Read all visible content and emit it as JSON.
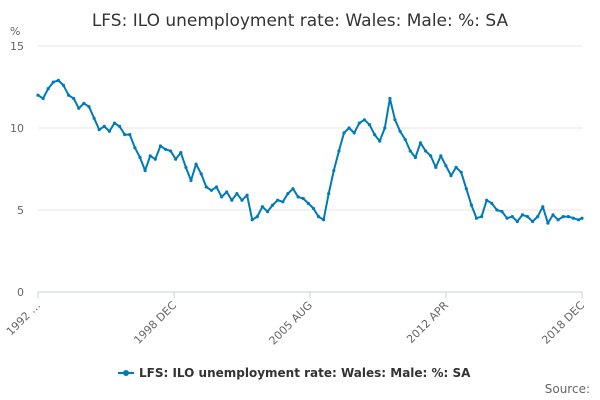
{
  "chart_data": {
    "type": "line",
    "title": "LFS: ILO unemployment rate: Wales: Male: %: SA",
    "ylabel": "%",
    "xlabel": "",
    "ylim": [
      0,
      15
    ],
    "yticks": [
      0,
      5,
      10,
      15
    ],
    "xlim": [
      "1992 APR",
      "2018 DEC"
    ],
    "xticks": [
      "1992 …",
      "1998 DEC",
      "2005 AUG",
      "2012 APR",
      "2018 DEC"
    ],
    "grid": "horizontal",
    "legend_position": "bottom",
    "series_color": "#007ab8",
    "series": [
      {
        "name": "LFS: ILO unemployment rate: Wales: Male: %: SA",
        "x": [
          1992.25,
          1992.5,
          1992.75,
          1993.0,
          1993.25,
          1993.5,
          1993.75,
          1994.0,
          1994.25,
          1994.5,
          1994.75,
          1995.0,
          1995.25,
          1995.5,
          1995.75,
          1996.0,
          1996.25,
          1996.5,
          1996.75,
          1997.0,
          1997.25,
          1997.5,
          1997.75,
          1998.0,
          1998.25,
          1998.5,
          1998.75,
          1999.0,
          1999.25,
          1999.5,
          1999.75,
          2000.0,
          2000.25,
          2000.5,
          2000.75,
          2001.0,
          2001.25,
          2001.5,
          2001.75,
          2002.0,
          2002.25,
          2002.5,
          2002.75,
          2003.0,
          2003.25,
          2003.5,
          2003.75,
          2004.0,
          2004.25,
          2004.5,
          2004.75,
          2005.0,
          2005.25,
          2005.5,
          2005.75,
          2006.0,
          2006.25,
          2006.5,
          2006.75,
          2007.0,
          2007.25,
          2007.5,
          2007.75,
          2008.0,
          2008.25,
          2008.5,
          2008.75,
          2009.0,
          2009.25,
          2009.5,
          2009.75,
          2010.0,
          2010.25,
          2010.5,
          2010.75,
          2011.0,
          2011.25,
          2011.5,
          2011.75,
          2012.0,
          2012.25,
          2012.5,
          2012.75,
          2013.0,
          2013.25,
          2013.5,
          2013.75,
          2014.0,
          2014.25,
          2014.5,
          2014.75,
          2015.0,
          2015.25,
          2015.5,
          2015.75,
          2016.0,
          2016.25,
          2016.5,
          2016.75,
          2017.0,
          2017.25,
          2017.5,
          2017.75,
          2018.0,
          2018.25,
          2018.5,
          2018.75,
          2018.92
        ],
        "values": [
          12.0,
          11.8,
          12.4,
          12.8,
          12.9,
          12.6,
          12.0,
          11.8,
          11.2,
          11.5,
          11.3,
          10.6,
          9.9,
          10.1,
          9.8,
          10.3,
          10.1,
          9.6,
          9.6,
          8.8,
          8.2,
          7.4,
          8.3,
          8.1,
          8.9,
          8.7,
          8.6,
          8.1,
          8.5,
          7.6,
          6.8,
          7.8,
          7.2,
          6.4,
          6.2,
          6.4,
          5.8,
          6.1,
          5.6,
          6.0,
          5.6,
          5.9,
          4.4,
          4.6,
          5.2,
          4.9,
          5.3,
          5.6,
          5.5,
          6.0,
          6.3,
          5.8,
          5.7,
          5.4,
          5.1,
          4.6,
          4.4,
          6.0,
          7.4,
          8.6,
          9.7,
          10.0,
          9.7,
          10.3,
          10.5,
          10.2,
          9.6,
          9.2,
          10.0,
          11.8,
          10.5,
          9.8,
          9.3,
          8.6,
          8.2,
          9.1,
          8.6,
          8.3,
          7.6,
          8.3,
          7.7,
          7.1,
          7.6,
          7.3,
          6.3,
          5.3,
          4.5,
          4.6,
          5.6,
          5.4,
          5.0,
          4.9,
          4.5,
          4.6,
          4.3,
          4.7,
          4.6,
          4.3,
          4.6,
          5.2,
          4.2,
          4.7,
          4.4,
          4.6,
          4.6,
          4.5,
          4.4,
          4.5
        ]
      }
    ]
  },
  "credits": "Source:"
}
